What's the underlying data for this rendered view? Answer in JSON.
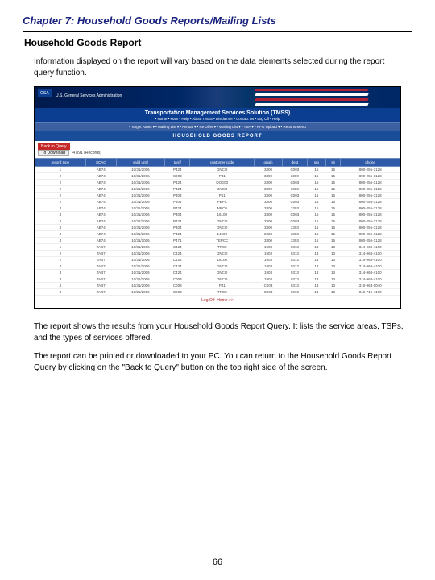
{
  "chapter_title": "Chapter 7:  Household Goods Reports/Mailing Lists",
  "section_title": "Household Goods Report",
  "intro_text": "Information displayed on the report will vary based on the data elements selected during the report query function.",
  "screenshot": {
    "gsa_badge": "GSA",
    "gsa_text": "U.S. General Services Administration",
    "app_title": "Transportation Management Services Solution (TMSS)",
    "nav1": "• Home • Main • Help • About TMSS • Disclaimer • Contact Us • Log Off • Help",
    "nav2": "• Target Rates ▾ • Mailing List ▾ • Annual ▾ • Re Offer ▾ • Waiting List ▾ • TSP ▾ • RFO Upload ▾ • Reports Menu",
    "report_header": "HOUSEHOLD GOODS REPORT",
    "back_btn": "Back to Query",
    "download_btn": "To Download",
    "records_label": "47/91 (Records)",
    "footer_link1": "Log Off",
    "footer_link2": "Home >>",
    "columns": [
      "record type",
      "SCAC",
      "valid until",
      "tarrif",
      "customer code",
      "origin",
      "dest",
      "sro",
      "sit",
      "phone"
    ],
    "rows": [
      [
        "1",
        "AB74",
        "10/31/2006",
        "P424",
        "DNCO",
        "3300",
        "C003",
        "15",
        "15",
        "800-255-3128"
      ],
      [
        "2",
        "AB74",
        "10/31/2006",
        "C003",
        "P41",
        "3300",
        "3300",
        "15",
        "15",
        "800-255-3128"
      ],
      [
        "2",
        "AB74",
        "10/31/2006",
        "P424",
        "DOE00",
        "3300",
        "C003",
        "15",
        "15",
        "800-255-3128"
      ],
      [
        "2",
        "AB74",
        "10/31/2006",
        "P424",
        "DNCO",
        "3300",
        "3303",
        "15",
        "15",
        "800-255-3128"
      ],
      [
        "2",
        "AB74",
        "10/31/2006",
        "P403",
        "P61",
        "3300",
        "C003",
        "15",
        "15",
        "800-255-3128"
      ],
      [
        "2",
        "AB74",
        "10/31/2006",
        "P404",
        "PEPC",
        "3300",
        "C003",
        "15",
        "15",
        "800-255-3128"
      ],
      [
        "3",
        "AB74",
        "10/31/2006",
        "P424",
        "NRC0",
        "3300",
        "3303",
        "15",
        "15",
        "800-255-3128"
      ],
      [
        "4",
        "AB74",
        "10/31/2006",
        "P404",
        "16100",
        "3300",
        "C003",
        "15",
        "15",
        "800-255-3128"
      ],
      [
        "4",
        "AB74",
        "10/31/2006",
        "P424",
        "DNCO",
        "3300",
        "C003",
        "15",
        "15",
        "800-255-3128"
      ],
      [
        "4",
        "AB74",
        "10/31/2006",
        "P404",
        "DNCO",
        "3300",
        "3303",
        "15",
        "15",
        "800-255-3128"
      ],
      [
        "4",
        "AB74",
        "10/31/2006",
        "P424",
        "14600",
        "2003",
        "3303",
        "15",
        "15",
        "800-255-3128"
      ],
      [
        "4",
        "AB74",
        "10/31/2006",
        "P471",
        "TEPCC",
        "3300",
        "3303",
        "15",
        "15",
        "800-255-3128"
      ],
      [
        "1",
        "TAB7",
        "10/31/2006",
        "C424",
        "TRC0",
        "1903",
        "0313",
        "13",
        "13",
        "314-968-4100"
      ],
      [
        "2",
        "TAB7",
        "10/31/2006",
        "C424",
        "DNCO",
        "1903",
        "0313",
        "13",
        "13",
        "314-968-4100"
      ],
      [
        "2",
        "TAB7",
        "10/31/2006",
        "C424",
        "16100",
        "1903",
        "0313",
        "13",
        "13",
        "314-968-4100"
      ],
      [
        "3",
        "TAB7",
        "10/31/2006",
        "C424",
        "DNCO",
        "1903",
        "0313",
        "13",
        "13",
        "314-968-4100"
      ],
      [
        "3",
        "TAB7",
        "10/31/2006",
        "C424",
        "DNCO",
        "1903",
        "0313",
        "13",
        "13",
        "314-968-4100"
      ],
      [
        "3",
        "TAB7",
        "10/31/2006",
        "C003",
        "DNCO",
        "1903",
        "0313",
        "13",
        "13",
        "314-968-4100"
      ],
      [
        "4",
        "TAB7",
        "10/31/2006",
        "C003",
        "P41",
        "C003",
        "0313",
        "13",
        "13",
        "310-963-1040"
      ],
      [
        "3",
        "TAB7",
        "10/31/2006",
        "C003",
        "TRC0",
        "C003",
        "0313",
        "13",
        "13",
        "310-712-4190"
      ]
    ]
  },
  "para2": "The report shows the results from your Household Goods Report Query.  It lists the service areas, TSPs,  and the types of services offered.",
  "para3": "The report can be printed or downloaded to your PC.  You can return to the Household Goods Report Query by clicking on the \"Back to Query\" button on the top right side of the screen.",
  "page_number": "66"
}
